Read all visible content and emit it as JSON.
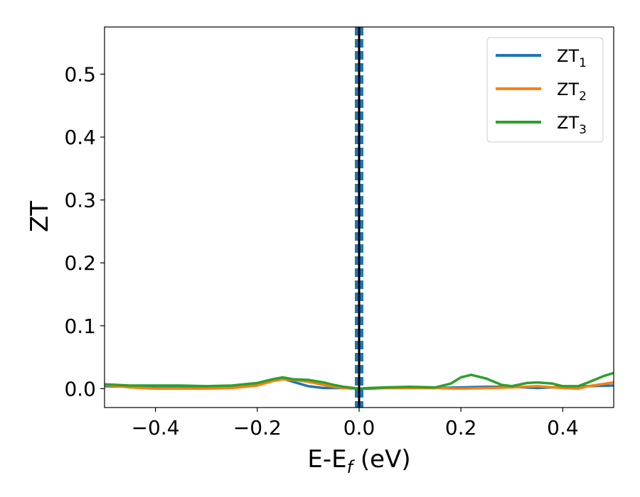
{
  "chart_data": {
    "type": "line",
    "xlabel": "E-E",
    "xlabel_sub": "f",
    "xlabel_unit": " (eV)",
    "ylabel": "ZT",
    "xlim": [
      -0.5,
      0.5
    ],
    "ylim": [
      -0.03,
      0.575
    ],
    "xticks": [
      -0.4,
      -0.2,
      0.0,
      0.2,
      0.4
    ],
    "xtick_labels": [
      "−0.4",
      "−0.2",
      "0.0",
      "0.2",
      "0.4"
    ],
    "yticks": [
      0.0,
      0.1,
      0.2,
      0.3,
      0.4,
      0.5
    ],
    "ytick_labels": [
      "0.0",
      "0.1",
      "0.2",
      "0.3",
      "0.4",
      "0.5"
    ],
    "grid": false,
    "legend_position": "top-right",
    "fermi_line_x": 0.0,
    "series": [
      {
        "name": "ZT",
        "name_sub": "1",
        "color": "#1f77b4",
        "x": [
          -0.5,
          -0.45,
          -0.4,
          -0.35,
          -0.3,
          -0.25,
          -0.2,
          -0.17,
          -0.15,
          -0.13,
          -0.1,
          -0.07,
          -0.05,
          -0.03,
          -0.01,
          0.0,
          0.02,
          0.05,
          0.1,
          0.15,
          0.2,
          0.25,
          0.3,
          0.35,
          0.4,
          0.45,
          0.5
        ],
        "y": [
          0.004,
          0.003,
          0.004,
          0.004,
          0.003,
          0.004,
          0.008,
          0.014,
          0.016,
          0.011,
          0.004,
          0.001,
          0.001,
          0.001,
          0.0,
          0.0,
          0.0,
          0.001,
          0.001,
          0.001,
          0.002,
          0.003,
          0.003,
          0.001,
          0.003,
          0.004,
          0.005
        ]
      },
      {
        "name": "ZT",
        "name_sub": "2",
        "color": "#ff7f0e",
        "x": [
          -0.5,
          -0.45,
          -0.4,
          -0.35,
          -0.3,
          -0.25,
          -0.2,
          -0.17,
          -0.15,
          -0.13,
          -0.1,
          -0.07,
          -0.05,
          -0.03,
          -0.01,
          0.0,
          0.02,
          0.05,
          0.1,
          0.15,
          0.2,
          0.25,
          0.3,
          0.35,
          0.4,
          0.43,
          0.45,
          0.5
        ],
        "y": [
          0.006,
          0.002,
          0.0,
          0.0,
          0.0,
          0.001,
          0.005,
          0.012,
          0.015,
          0.014,
          0.011,
          0.006,
          0.003,
          0.001,
          0.0,
          0.0,
          0.001,
          0.001,
          0.001,
          0.001,
          0.0,
          0.001,
          0.002,
          0.004,
          0.001,
          0.0,
          0.004,
          0.01
        ]
      },
      {
        "name": "ZT",
        "name_sub": "3",
        "color": "#2ca02c",
        "x": [
          -0.5,
          -0.45,
          -0.4,
          -0.35,
          -0.3,
          -0.25,
          -0.2,
          -0.17,
          -0.15,
          -0.13,
          -0.1,
          -0.07,
          -0.05,
          -0.03,
          -0.01,
          0.0,
          0.02,
          0.05,
          0.1,
          0.15,
          0.18,
          0.2,
          0.22,
          0.25,
          0.28,
          0.3,
          0.33,
          0.35,
          0.38,
          0.4,
          0.43,
          0.45,
          0.48,
          0.5
        ],
        "y": [
          0.007,
          0.005,
          0.005,
          0.005,
          0.004,
          0.005,
          0.009,
          0.015,
          0.018,
          0.015,
          0.014,
          0.01,
          0.006,
          0.003,
          0.001,
          0.0,
          0.001,
          0.002,
          0.003,
          0.002,
          0.008,
          0.018,
          0.022,
          0.016,
          0.006,
          0.004,
          0.009,
          0.01,
          0.008,
          0.004,
          0.004,
          0.01,
          0.02,
          0.025
        ]
      }
    ]
  }
}
